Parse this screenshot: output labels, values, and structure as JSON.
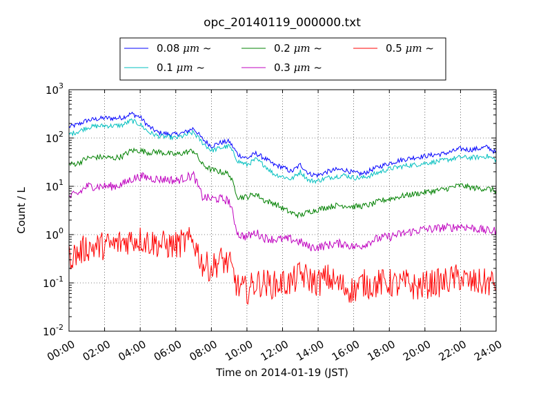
{
  "chart_data": {
    "type": "line",
    "title": "opc_20140119_000000.txt",
    "xlabel": "Time on 2014-01-19 (JST)",
    "ylabel": "Count / L",
    "yscale": "log",
    "xlim": [
      "00:00",
      "24:00"
    ],
    "ylim": [
      0.01,
      1000
    ],
    "grid": true,
    "legend_position": "top-center, above plot",
    "x_ticks": [
      "00:00",
      "02:00",
      "04:00",
      "06:00",
      "08:00",
      "10:00",
      "12:00",
      "14:00",
      "16:00",
      "18:00",
      "20:00",
      "22:00",
      "24:00"
    ],
    "y_ticks": [
      {
        "base": "10",
        "exp": "-2",
        "value": 0.01
      },
      {
        "base": "10",
        "exp": "-1",
        "value": 0.1
      },
      {
        "base": "10",
        "exp": "0",
        "value": 1
      },
      {
        "base": "10",
        "exp": "1",
        "value": 10
      },
      {
        "base": "10",
        "exp": "2",
        "value": 100
      },
      {
        "base": "10",
        "exp": "3",
        "value": 1000
      }
    ],
    "x": [
      "00:00",
      "00:30",
      "01:00",
      "01:30",
      "02:00",
      "02:30",
      "03:00",
      "03:30",
      "04:00",
      "04:30",
      "05:00",
      "05:30",
      "06:00",
      "06:30",
      "07:00",
      "07:30",
      "08:00",
      "08:30",
      "09:00",
      "09:30",
      "10:00",
      "10:30",
      "11:00",
      "11:30",
      "12:00",
      "12:30",
      "13:00",
      "13:30",
      "14:00",
      "14:30",
      "15:00",
      "15:30",
      "16:00",
      "16:30",
      "17:00",
      "17:30",
      "18:00",
      "18:30",
      "19:00",
      "19:30",
      "20:00",
      "20:30",
      "21:00",
      "21:30",
      "22:00",
      "22:30",
      "23:00",
      "23:30",
      "24:00"
    ],
    "series": [
      {
        "name": "0.08 μm ~",
        "label_prefix": "0.08 ",
        "label_suffix": " ~",
        "color": "#0000ff",
        "values": [
          170,
          190,
          230,
          245,
          260,
          255,
          265,
          320,
          270,
          170,
          130,
          122,
          118,
          130,
          160,
          95,
          68,
          80,
          85,
          45,
          38,
          48,
          38,
          28,
          25,
          20,
          28,
          18,
          17,
          20,
          22,
          22,
          19,
          18,
          22,
          26,
          30,
          34,
          37,
          40,
          42,
          45,
          47,
          52,
          60,
          57,
          60,
          65,
          50
        ]
      },
      {
        "name": "0.1 μm ~",
        "label_prefix": "0.1 ",
        "label_suffix": " ~",
        "color": "#00bfbf",
        "values": [
          120,
          135,
          165,
          175,
          180,
          178,
          185,
          230,
          190,
          130,
          110,
          105,
          100,
          112,
          130,
          80,
          55,
          62,
          68,
          33,
          28,
          36,
          27,
          18,
          16,
          14,
          20,
          13,
          13,
          15,
          16,
          17,
          15,
          15,
          17,
          20,
          23,
          25,
          27,
          28,
          30,
          32,
          34,
          37,
          40,
          39,
          40,
          42,
          35
        ]
      },
      {
        "name": "0.2 μm ~",
        "label_prefix": "0.2 ",
        "label_suffix": " ~",
        "color": "#008000",
        "values": [
          28,
          30,
          38,
          40,
          40,
          38,
          42,
          55,
          55,
          50,
          52,
          48,
          45,
          50,
          55,
          28,
          22,
          20,
          18,
          6,
          6,
          7,
          5,
          4.5,
          3.5,
          2.8,
          2.5,
          3,
          3.3,
          3.7,
          4,
          4,
          3.8,
          3.9,
          4.2,
          5,
          5.5,
          6,
          6.6,
          7,
          7.5,
          8,
          8.5,
          9.5,
          10.5,
          9.5,
          9,
          9,
          8
        ]
      },
      {
        "name": "0.3 μm ~",
        "label_prefix": "0.3 ",
        "label_suffix": " ~",
        "color": "#bf00bf",
        "values": [
          6,
          7,
          10,
          10,
          10,
          10,
          11,
          14,
          16,
          15,
          14,
          14,
          13,
          15,
          17,
          6,
          5.5,
          5.5,
          5,
          1,
          0.9,
          1.1,
          0.85,
          0.8,
          0.8,
          0.8,
          0.7,
          0.55,
          0.55,
          0.6,
          0.65,
          0.65,
          0.55,
          0.6,
          0.75,
          0.85,
          0.9,
          1,
          1.1,
          1.2,
          1.3,
          1.3,
          1.4,
          1.4,
          1.5,
          1.4,
          1.3,
          1.2,
          1.2
        ]
      },
      {
        "name": "0.5 μm ~",
        "label_prefix": "0.5 ",
        "label_suffix": " ~",
        "color": "#ff0000",
        "values": [
          0.35,
          0.4,
          0.55,
          0.55,
          0.6,
          0.6,
          0.7,
          0.8,
          0.8,
          0.7,
          0.65,
          0.6,
          0.6,
          0.7,
          0.75,
          0.25,
          0.2,
          0.3,
          0.25,
          0.08,
          0.07,
          0.1,
          0.1,
          0.09,
          0.1,
          0.1,
          0.15,
          0.12,
          0.1,
          0.13,
          0.1,
          0.08,
          0.07,
          0.1,
          0.09,
          0.1,
          0.1,
          0.09,
          0.1,
          0.08,
          0.09,
          0.1,
          0.1,
          0.12,
          0.13,
          0.1,
          0.1,
          0.1,
          0.1
        ]
      }
    ],
    "legend_unit": "μm"
  }
}
